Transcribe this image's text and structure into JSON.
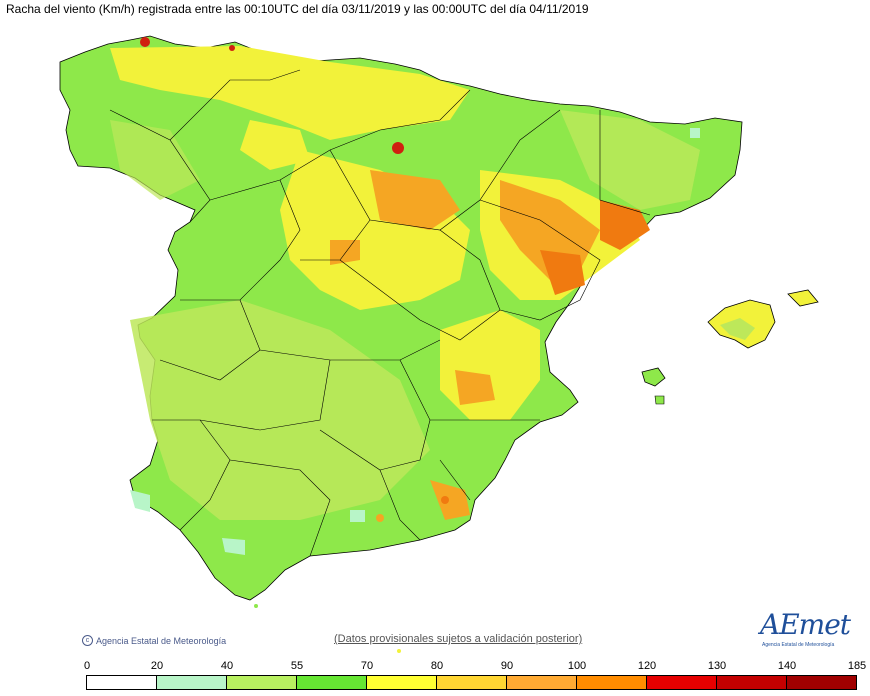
{
  "title": "Racha del viento (Km/h) registrada entre las 00:10UTC del día 03/11/2019 y las 00:00UTC del día 04/11/2019",
  "footer": {
    "agency": "Agencia Estatal de Meteorología",
    "disclaimer": "(Datos provisionales sujetos a validación posterior)",
    "logo": "AEmet",
    "logo_sub": "Agencia Estatal de Meteorología"
  },
  "legend": {
    "ticks": [
      "0",
      "20",
      "40",
      "55",
      "70",
      "80",
      "90",
      "100",
      "120",
      "130",
      "140",
      "185"
    ],
    "colors": [
      "#ffffff",
      "#b8f5c8",
      "#b8f060",
      "#66e633",
      "#ffff33",
      "#ffd633",
      "#ffaa33",
      "#ff8c00",
      "#e60000",
      "#c40000",
      "#a00000"
    ]
  },
  "map_colors": {
    "sea": "#ffffff",
    "base": "#8ee84a",
    "light": "#bde85a",
    "yellow": "#f2f23a",
    "orange": "#f5a623",
    "deep_orange": "#f07a10",
    "red": "#d02010",
    "border": "#000000"
  }
}
